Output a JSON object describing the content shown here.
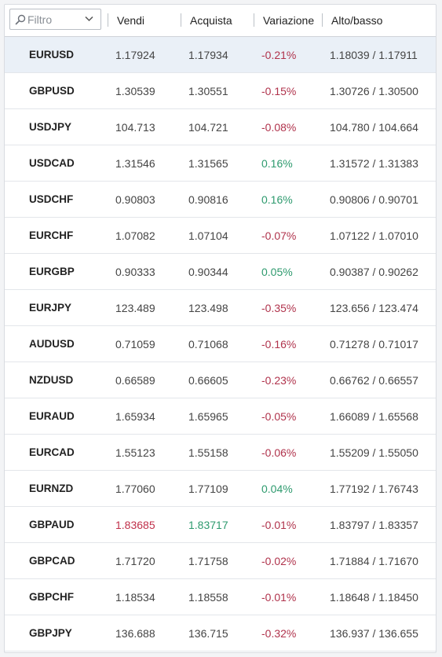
{
  "filter": {
    "placeholder": "Filtro"
  },
  "columns": {
    "sell": "Vendi",
    "buy": "Acquista",
    "change": "Variazione",
    "highlow": "Alto/basso"
  },
  "colors": {
    "negative": "#b0334c",
    "positive": "#2e9a6e",
    "selected_row": "#eaf0f7"
  },
  "rows": [
    {
      "symbol": "EURUSD",
      "sell": "1.17924",
      "buy": "1.17934",
      "change": "-0.21%",
      "change_dir": "neg",
      "highlow": "1.18039 / 1.17911",
      "selected": true
    },
    {
      "symbol": "GBPUSD",
      "sell": "1.30539",
      "buy": "1.30551",
      "change": "-0.15%",
      "change_dir": "neg",
      "highlow": "1.30726 / 1.30500"
    },
    {
      "symbol": "USDJPY",
      "sell": "104.713",
      "buy": "104.721",
      "change": "-0.08%",
      "change_dir": "neg",
      "highlow": "104.780 / 104.664"
    },
    {
      "symbol": "USDCAD",
      "sell": "1.31546",
      "buy": "1.31565",
      "change": "0.16%",
      "change_dir": "pos",
      "highlow": "1.31572 / 1.31383"
    },
    {
      "symbol": "USDCHF",
      "sell": "0.90803",
      "buy": "0.90816",
      "change": "0.16%",
      "change_dir": "pos",
      "highlow": "0.90806 / 0.90701"
    },
    {
      "symbol": "EURCHF",
      "sell": "1.07082",
      "buy": "1.07104",
      "change": "-0.07%",
      "change_dir": "neg",
      "highlow": "1.07122 / 1.07010"
    },
    {
      "symbol": "EURGBP",
      "sell": "0.90333",
      "buy": "0.90344",
      "change": "0.05%",
      "change_dir": "pos",
      "highlow": "0.90387 / 0.90262"
    },
    {
      "symbol": "EURJPY",
      "sell": "123.489",
      "buy": "123.498",
      "change": "-0.35%",
      "change_dir": "neg",
      "highlow": "123.656 / 123.474"
    },
    {
      "symbol": "AUDUSD",
      "sell": "0.71059",
      "buy": "0.71068",
      "change": "-0.16%",
      "change_dir": "neg",
      "highlow": "0.71278 / 0.71017"
    },
    {
      "symbol": "NZDUSD",
      "sell": "0.66589",
      "buy": "0.66605",
      "change": "-0.23%",
      "change_dir": "neg",
      "highlow": "0.66762 / 0.66557"
    },
    {
      "symbol": "EURAUD",
      "sell": "1.65934",
      "buy": "1.65965",
      "change": "-0.05%",
      "change_dir": "neg",
      "highlow": "1.66089 / 1.65568"
    },
    {
      "symbol": "EURCAD",
      "sell": "1.55123",
      "buy": "1.55158",
      "change": "-0.06%",
      "change_dir": "neg",
      "highlow": "1.55209 / 1.55050"
    },
    {
      "symbol": "EURNZD",
      "sell": "1.77060",
      "buy": "1.77109",
      "change": "0.04%",
      "change_dir": "pos",
      "highlow": "1.77192 / 1.76743"
    },
    {
      "symbol": "GBPAUD",
      "sell": "1.83685",
      "buy": "1.83717",
      "change": "-0.01%",
      "change_dir": "neg",
      "highlow": "1.83797 / 1.83357",
      "sell_dir": "neg",
      "buy_dir": "pos"
    },
    {
      "symbol": "GBPCAD",
      "sell": "1.71720",
      "buy": "1.71758",
      "change": "-0.02%",
      "change_dir": "neg",
      "highlow": "1.71884 / 1.71670"
    },
    {
      "symbol": "GBPCHF",
      "sell": "1.18534",
      "buy": "1.18558",
      "change": "-0.01%",
      "change_dir": "neg",
      "highlow": "1.18648 / 1.18450"
    },
    {
      "symbol": "GBPJPY",
      "sell": "136.688",
      "buy": "136.715",
      "change": "-0.32%",
      "change_dir": "neg",
      "highlow": "136.937 / 136.655"
    }
  ]
}
